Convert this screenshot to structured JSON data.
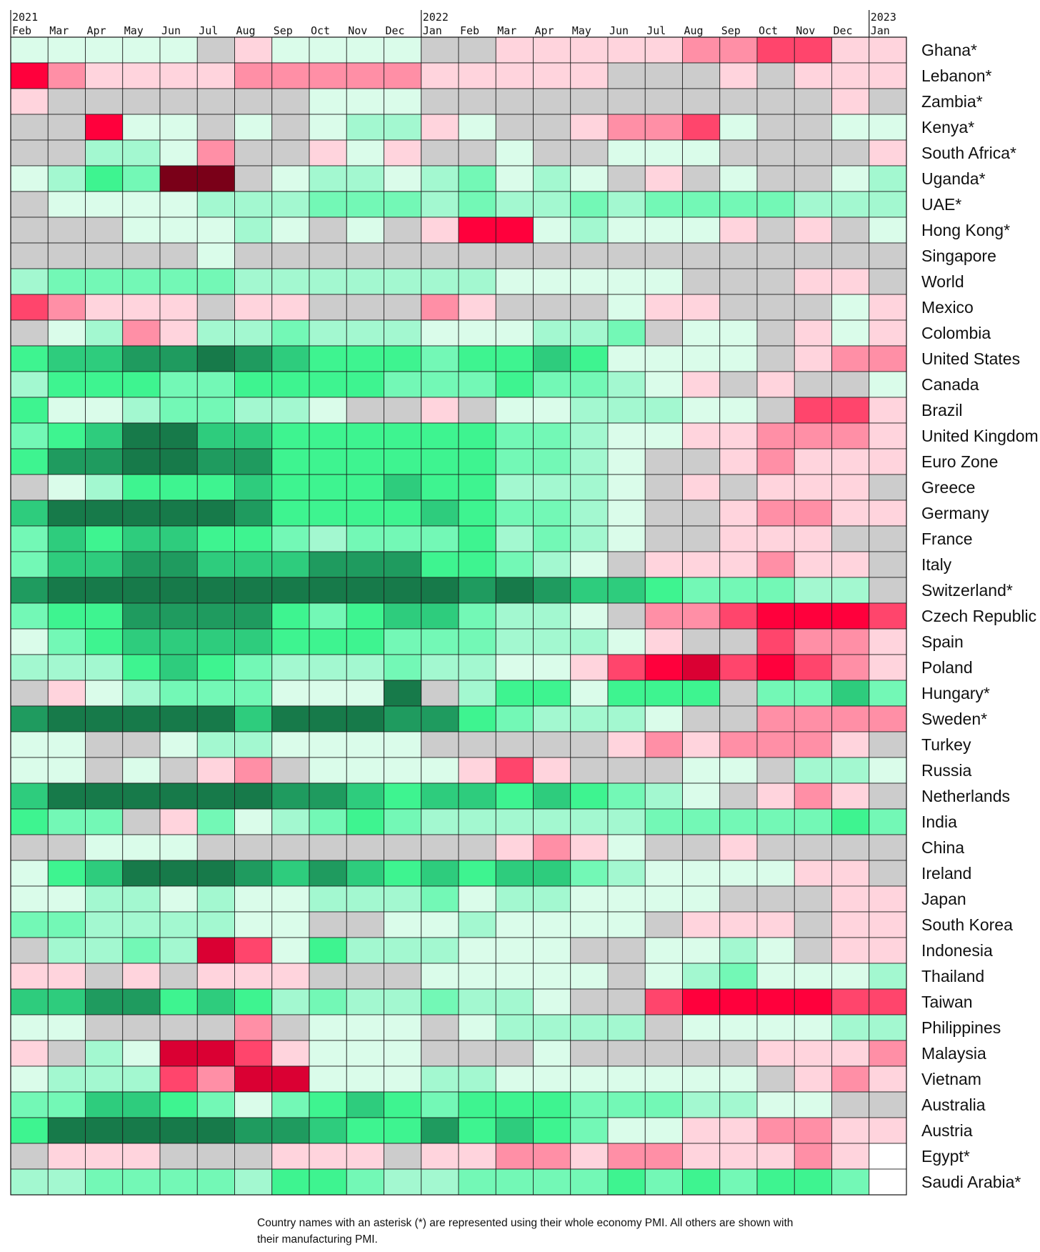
{
  "chart_data": {
    "type": "heatmap",
    "title": "",
    "columns": [
      {
        "month": "Feb",
        "year": "2021"
      },
      {
        "month": "Mar",
        "year": ""
      },
      {
        "month": "Apr",
        "year": ""
      },
      {
        "month": "May",
        "year": ""
      },
      {
        "month": "Jun",
        "year": ""
      },
      {
        "month": "Jul",
        "year": ""
      },
      {
        "month": "Aug",
        "year": ""
      },
      {
        "month": "Sep",
        "year": ""
      },
      {
        "month": "Oct",
        "year": ""
      },
      {
        "month": "Nov",
        "year": ""
      },
      {
        "month": "Dec",
        "year": ""
      },
      {
        "month": "Jan",
        "year": "2022"
      },
      {
        "month": "Feb",
        "year": ""
      },
      {
        "month": "Mar",
        "year": ""
      },
      {
        "month": "Apr",
        "year": ""
      },
      {
        "month": "May",
        "year": ""
      },
      {
        "month": "Jun",
        "year": ""
      },
      {
        "month": "Jul",
        "year": ""
      },
      {
        "month": "Aug",
        "year": ""
      },
      {
        "month": "Sep",
        "year": ""
      },
      {
        "month": "Oct",
        "year": ""
      },
      {
        "month": "Nov",
        "year": ""
      },
      {
        "month": "Dec",
        "year": ""
      },
      {
        "month": "Jan",
        "year": "2023"
      }
    ],
    "color_scale": {
      "0": "#ffffff",
      "1": "#ff003c",
      "2": "#ff456c",
      "3": "#ff8fa6",
      "4": "#ffd4dd",
      "5": "#cccccc",
      "6": "#dafcea",
      "7": "#a3f8d0",
      "8": "#73f8b6",
      "9": "#3ef490",
      "10": "#2ecc7d",
      "11": "#1f9b5f",
      "12": "#177a4a",
      "13": "#da0033",
      "14": "#7a0018"
    },
    "rows": [
      {
        "name": "Ghana*",
        "cells": [
          6,
          6,
          6,
          6,
          6,
          5,
          4,
          6,
          6,
          6,
          6,
          5,
          5,
          4,
          4,
          4,
          4,
          4,
          3,
          3,
          2,
          2,
          4,
          4
        ]
      },
      {
        "name": "Lebanon*",
        "cells": [
          1,
          3,
          4,
          4,
          4,
          4,
          3,
          3,
          3,
          3,
          3,
          4,
          4,
          4,
          4,
          4,
          5,
          5,
          5,
          4,
          5,
          4,
          4,
          4
        ]
      },
      {
        "name": "Zambia*",
        "cells": [
          4,
          5,
          5,
          5,
          5,
          5,
          5,
          5,
          6,
          6,
          6,
          5,
          5,
          5,
          5,
          5,
          5,
          5,
          5,
          5,
          5,
          5,
          4,
          5
        ]
      },
      {
        "name": "Kenya*",
        "cells": [
          5,
          5,
          1,
          6,
          6,
          5,
          6,
          5,
          6,
          7,
          7,
          4,
          6,
          5,
          5,
          4,
          3,
          3,
          2,
          6,
          5,
          5,
          6,
          6
        ]
      },
      {
        "name": "South Africa*",
        "cells": [
          5,
          5,
          7,
          7,
          6,
          3,
          5,
          5,
          4,
          6,
          4,
          5,
          5,
          6,
          5,
          5,
          6,
          6,
          6,
          5,
          5,
          5,
          5,
          4
        ]
      },
      {
        "name": "Uganda*",
        "cells": [
          6,
          7,
          9,
          8,
          14,
          14,
          5,
          6,
          7,
          7,
          6,
          7,
          8,
          6,
          7,
          6,
          5,
          4,
          5,
          6,
          5,
          5,
          6,
          7
        ]
      },
      {
        "name": "UAE*",
        "cells": [
          5,
          6,
          6,
          6,
          6,
          7,
          7,
          7,
          8,
          8,
          8,
          7,
          8,
          7,
          7,
          8,
          7,
          8,
          8,
          8,
          8,
          7,
          7,
          7
        ]
      },
      {
        "name": "Hong Kong*",
        "cells": [
          5,
          5,
          5,
          6,
          6,
          6,
          7,
          6,
          5,
          6,
          5,
          4,
          1,
          1,
          6,
          7,
          6,
          6,
          6,
          4,
          5,
          4,
          5,
          6
        ]
      },
      {
        "name": "Singapore",
        "cells": [
          5,
          5,
          5,
          5,
          5,
          6,
          5,
          5,
          5,
          5,
          5,
          5,
          5,
          5,
          5,
          5,
          5,
          5,
          5,
          5,
          5,
          5,
          5,
          5
        ]
      },
      {
        "name": "World",
        "cells": [
          7,
          8,
          8,
          8,
          8,
          8,
          7,
          7,
          7,
          7,
          7,
          7,
          7,
          6,
          6,
          6,
          6,
          6,
          5,
          5,
          5,
          4,
          4,
          5
        ]
      },
      {
        "name": "Mexico",
        "cells": [
          2,
          3,
          4,
          4,
          4,
          5,
          4,
          4,
          5,
          5,
          5,
          3,
          4,
          5,
          5,
          5,
          6,
          4,
          4,
          5,
          5,
          5,
          6,
          4
        ]
      },
      {
        "name": "Colombia",
        "cells": [
          5,
          6,
          7,
          3,
          4,
          7,
          7,
          8,
          7,
          7,
          7,
          6,
          6,
          6,
          7,
          7,
          8,
          5,
          6,
          6,
          5,
          4,
          6,
          4
        ]
      },
      {
        "name": "United States",
        "cells": [
          9,
          10,
          10,
          11,
          11,
          12,
          11,
          10,
          9,
          9,
          9,
          8,
          9,
          9,
          10,
          9,
          6,
          6,
          6,
          6,
          5,
          4,
          3,
          3
        ]
      },
      {
        "name": "Canada",
        "cells": [
          7,
          9,
          9,
          9,
          8,
          8,
          9,
          9,
          9,
          9,
          8,
          8,
          8,
          9,
          8,
          8,
          7,
          6,
          4,
          5,
          4,
          5,
          5,
          6
        ]
      },
      {
        "name": "Brazil",
        "cells": [
          9,
          6,
          6,
          7,
          8,
          8,
          7,
          7,
          6,
          5,
          5,
          4,
          5,
          6,
          6,
          7,
          7,
          7,
          6,
          6,
          5,
          2,
          2,
          4
        ]
      },
      {
        "name": "United Kingdom",
        "cells": [
          8,
          9,
          10,
          12,
          12,
          10,
          10,
          9,
          9,
          9,
          9,
          9,
          9,
          8,
          8,
          7,
          6,
          6,
          4,
          4,
          3,
          3,
          3,
          4
        ]
      },
      {
        "name": "Euro Zone",
        "cells": [
          9,
          11,
          11,
          12,
          12,
          11,
          11,
          9,
          9,
          9,
          9,
          9,
          9,
          8,
          8,
          7,
          6,
          5,
          5,
          4,
          3,
          4,
          4,
          4
        ]
      },
      {
        "name": "Greece",
        "cells": [
          5,
          6,
          7,
          9,
          9,
          9,
          10,
          9,
          9,
          9,
          10,
          9,
          9,
          7,
          7,
          7,
          6,
          5,
          4,
          5,
          4,
          4,
          4,
          5
        ]
      },
      {
        "name": "Germany",
        "cells": [
          10,
          12,
          12,
          12,
          12,
          12,
          11,
          9,
          9,
          9,
          9,
          10,
          9,
          8,
          8,
          7,
          6,
          5,
          5,
          4,
          3,
          3,
          4,
          4
        ]
      },
      {
        "name": "France",
        "cells": [
          8,
          10,
          9,
          10,
          10,
          9,
          9,
          8,
          7,
          8,
          8,
          8,
          9,
          7,
          8,
          7,
          6,
          5,
          5,
          4,
          4,
          4,
          5,
          5
        ]
      },
      {
        "name": "Italy",
        "cells": [
          8,
          10,
          10,
          11,
          11,
          10,
          10,
          10,
          11,
          11,
          11,
          9,
          9,
          8,
          7,
          6,
          5,
          4,
          4,
          4,
          3,
          4,
          4,
          5
        ]
      },
      {
        "name": "Switzerland*",
        "cells": [
          11,
          12,
          12,
          12,
          12,
          12,
          12,
          12,
          12,
          12,
          12,
          12,
          11,
          12,
          11,
          10,
          10,
          9,
          8,
          8,
          8,
          7,
          7,
          5
        ]
      },
      {
        "name": "Czech Republic",
        "cells": [
          8,
          9,
          9,
          11,
          11,
          11,
          11,
          9,
          8,
          9,
          10,
          10,
          8,
          7,
          7,
          6,
          5,
          3,
          3,
          2,
          1,
          1,
          1,
          2
        ]
      },
      {
        "name": "Spain",
        "cells": [
          6,
          8,
          9,
          10,
          10,
          10,
          10,
          9,
          9,
          9,
          8,
          8,
          8,
          7,
          7,
          7,
          6,
          4,
          5,
          5,
          2,
          3,
          3,
          4
        ]
      },
      {
        "name": "Poland",
        "cells": [
          7,
          7,
          7,
          9,
          10,
          9,
          8,
          7,
          7,
          7,
          8,
          7,
          7,
          6,
          6,
          4,
          2,
          1,
          13,
          2,
          1,
          2,
          3,
          4
        ]
      },
      {
        "name": "Hungary*",
        "cells": [
          5,
          4,
          6,
          7,
          8,
          8,
          8,
          6,
          6,
          6,
          12,
          5,
          7,
          9,
          9,
          6,
          9,
          9,
          9,
          5,
          8,
          8,
          10,
          8
        ]
      },
      {
        "name": "Sweden*",
        "cells": [
          11,
          12,
          12,
          12,
          12,
          12,
          10,
          12,
          12,
          12,
          11,
          11,
          9,
          8,
          7,
          7,
          7,
          6,
          5,
          5,
          3,
          3,
          3,
          3
        ]
      },
      {
        "name": "Turkey",
        "cells": [
          6,
          6,
          5,
          5,
          6,
          7,
          7,
          6,
          6,
          6,
          6,
          5,
          5,
          5,
          5,
          5,
          4,
          3,
          4,
          3,
          3,
          3,
          4,
          5
        ]
      },
      {
        "name": "Russia",
        "cells": [
          6,
          6,
          5,
          6,
          5,
          4,
          3,
          5,
          6,
          6,
          6,
          6,
          4,
          2,
          4,
          5,
          5,
          5,
          6,
          6,
          5,
          7,
          7,
          6
        ]
      },
      {
        "name": "Netherlands",
        "cells": [
          10,
          12,
          12,
          12,
          12,
          12,
          12,
          11,
          11,
          10,
          9,
          10,
          10,
          9,
          10,
          9,
          8,
          7,
          6,
          5,
          4,
          3,
          4,
          5
        ]
      },
      {
        "name": "India",
        "cells": [
          9,
          8,
          8,
          5,
          4,
          8,
          6,
          7,
          8,
          9,
          8,
          7,
          7,
          7,
          7,
          7,
          7,
          8,
          8,
          8,
          8,
          8,
          9,
          8
        ]
      },
      {
        "name": "China",
        "cells": [
          5,
          5,
          6,
          6,
          6,
          5,
          5,
          5,
          5,
          5,
          5,
          5,
          5,
          4,
          3,
          4,
          6,
          5,
          5,
          4,
          5,
          5,
          5,
          5
        ]
      },
      {
        "name": "Ireland",
        "cells": [
          6,
          9,
          10,
          12,
          12,
          12,
          11,
          10,
          11,
          10,
          9,
          10,
          9,
          10,
          10,
          8,
          7,
          6,
          6,
          6,
          6,
          4,
          4,
          5
        ]
      },
      {
        "name": "Japan",
        "cells": [
          6,
          6,
          7,
          7,
          6,
          7,
          6,
          6,
          7,
          7,
          7,
          8,
          6,
          7,
          7,
          6,
          6,
          6,
          6,
          5,
          5,
          5,
          4,
          4
        ]
      },
      {
        "name": "South Korea",
        "cells": [
          8,
          8,
          7,
          7,
          7,
          7,
          6,
          6,
          5,
          5,
          6,
          6,
          7,
          6,
          6,
          6,
          6,
          5,
          4,
          4,
          4,
          5,
          4,
          4
        ]
      },
      {
        "name": "Indonesia",
        "cells": [
          5,
          7,
          7,
          8,
          7,
          13,
          2,
          6,
          9,
          7,
          7,
          7,
          6,
          6,
          6,
          5,
          5,
          6,
          6,
          7,
          6,
          5,
          4,
          4
        ]
      },
      {
        "name": "Thailand",
        "cells": [
          4,
          4,
          5,
          4,
          5,
          4,
          4,
          4,
          5,
          5,
          5,
          6,
          6,
          6,
          6,
          6,
          5,
          6,
          7,
          8,
          6,
          6,
          6,
          7
        ]
      },
      {
        "name": "Taiwan",
        "cells": [
          10,
          10,
          11,
          11,
          9,
          10,
          9,
          7,
          8,
          7,
          7,
          8,
          7,
          7,
          6,
          5,
          5,
          2,
          1,
          1,
          1,
          1,
          2,
          2
        ]
      },
      {
        "name": "Philippines",
        "cells": [
          6,
          6,
          5,
          5,
          5,
          5,
          3,
          5,
          6,
          6,
          6,
          5,
          6,
          7,
          7,
          7,
          7,
          5,
          6,
          6,
          6,
          6,
          7,
          7
        ]
      },
      {
        "name": "Malaysia",
        "cells": [
          4,
          5,
          7,
          6,
          13,
          13,
          2,
          4,
          6,
          6,
          6,
          5,
          5,
          5,
          6,
          5,
          5,
          5,
          5,
          5,
          4,
          4,
          4,
          3
        ]
      },
      {
        "name": "Vietnam",
        "cells": [
          6,
          7,
          7,
          7,
          2,
          3,
          13,
          13,
          6,
          6,
          6,
          7,
          7,
          6,
          6,
          6,
          6,
          6,
          6,
          6,
          5,
          4,
          3,
          4
        ]
      },
      {
        "name": "Australia",
        "cells": [
          8,
          8,
          10,
          10,
          9,
          8,
          6,
          8,
          9,
          10,
          9,
          8,
          9,
          9,
          9,
          8,
          8,
          8,
          7,
          7,
          6,
          6,
          5,
          5
        ]
      },
      {
        "name": "Austria",
        "cells": [
          9,
          12,
          12,
          12,
          12,
          12,
          11,
          11,
          10,
          9,
          9,
          11,
          9,
          10,
          9,
          8,
          6,
          6,
          4,
          4,
          3,
          3,
          4,
          4
        ]
      },
      {
        "name": "Egypt*",
        "cells": [
          5,
          4,
          4,
          4,
          5,
          5,
          5,
          4,
          4,
          4,
          5,
          4,
          4,
          3,
          3,
          4,
          3,
          3,
          4,
          4,
          4,
          3,
          4,
          0
        ]
      },
      {
        "name": "Saudi Arabia*",
        "cells": [
          7,
          7,
          8,
          8,
          8,
          8,
          7,
          9,
          9,
          8,
          7,
          7,
          8,
          8,
          8,
          8,
          9,
          8,
          9,
          8,
          9,
          9,
          8,
          0
        ]
      }
    ]
  },
  "footnote": "Country names with an asterisk (*) are represented using their whole economy PMI. All others are shown with their manufacturing PMI."
}
